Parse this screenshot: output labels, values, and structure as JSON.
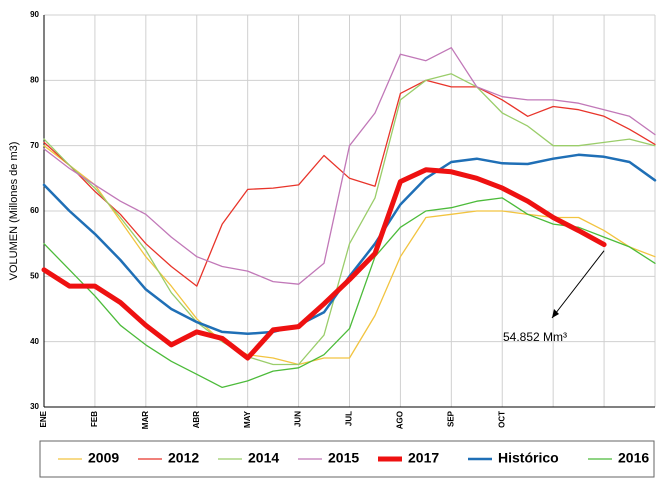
{
  "chart_data": {
    "type": "line",
    "y_label": "VOLUMEN (Millones de m3)",
    "annotation": "54.852 Mm³",
    "categories": [
      "ENE",
      null,
      "FEB",
      null,
      "MAR",
      null,
      "ABR",
      null,
      "MAY",
      null,
      "JUN",
      null,
      "JUL",
      null,
      "AGO",
      null,
      "SEP",
      null,
      "OCT",
      null,
      null,
      null,
      null,
      null,
      null
    ],
    "ylim": [
      30,
      90
    ],
    "yticks": [
      30,
      40,
      50,
      60,
      70,
      80,
      90
    ],
    "grid": true,
    "legend": "bottom",
    "series": [
      {
        "name": "2009",
        "color": "#f2c440",
        "line_width": 1.3,
        "values": [
          70,
          67,
          64,
          58.5,
          53,
          48.5,
          43.5,
          40,
          38,
          37.5,
          36.5,
          37.5,
          37.5,
          44,
          53,
          59,
          59.5,
          60,
          60,
          59.5,
          59,
          59,
          57,
          54.5,
          53
        ]
      },
      {
        "name": "2012",
        "color": "#e8342a",
        "line_width": 1.3,
        "values": [
          70.5,
          67,
          63,
          59.5,
          55,
          51.5,
          48.5,
          58,
          63.3,
          63.5,
          64,
          68.5,
          65,
          63.8,
          78,
          80,
          79,
          79,
          77,
          74.5,
          76,
          75.5,
          74.5,
          72.5,
          70.2
        ]
      },
      {
        "name": "2014",
        "color": "#9acd6a",
        "line_width": 1.3,
        "values": [
          71,
          67,
          63.5,
          59,
          54,
          47.5,
          43,
          40,
          37.7,
          36.5,
          36.5,
          41,
          55,
          62,
          77,
          80,
          81,
          79,
          75,
          73,
          70,
          70,
          70.5,
          71,
          70
        ]
      },
      {
        "name": "2015",
        "color": "#c178b8",
        "line_width": 1.3,
        "values": [
          69.5,
          66.5,
          64,
          61.5,
          59.5,
          56,
          53,
          51.5,
          50.8,
          49.2,
          48.8,
          52,
          70,
          75,
          84,
          83,
          85,
          79,
          77.5,
          77,
          77,
          76.5,
          75.5,
          74.5,
          71.7
        ]
      },
      {
        "name": "2017",
        "color": "#ee1111",
        "line_width": 5,
        "values": [
          51,
          48.5,
          48.5,
          46,
          42.5,
          39.5,
          41.5,
          40.5,
          37.5,
          41.8,
          42.3,
          45.8,
          49.5,
          53.5,
          64.5,
          66.3,
          66,
          65,
          63.5,
          61.5,
          59,
          57,
          54.852,
          null,
          null
        ]
      },
      {
        "name": "Histórico",
        "color": "#1f6fb6",
        "line_width": 2.5,
        "values": [
          64,
          60,
          56.5,
          52.5,
          48,
          45,
          43,
          41.5,
          41.2,
          41.5,
          42.5,
          44.5,
          50,
          55,
          61,
          65,
          67.5,
          68,
          67.3,
          67.2,
          68,
          68.6,
          68.3,
          67.5,
          64.7
        ]
      },
      {
        "name": "2016",
        "color": "#4cbb3a",
        "line_width": 1.3,
        "values": [
          55,
          51,
          47,
          42.5,
          39.5,
          37,
          35,
          33,
          34,
          35.5,
          36,
          38,
          42,
          53,
          57.5,
          60,
          60.5,
          61.5,
          62,
          59.5,
          58,
          57.5,
          56,
          54.5,
          52
        ]
      }
    ]
  }
}
